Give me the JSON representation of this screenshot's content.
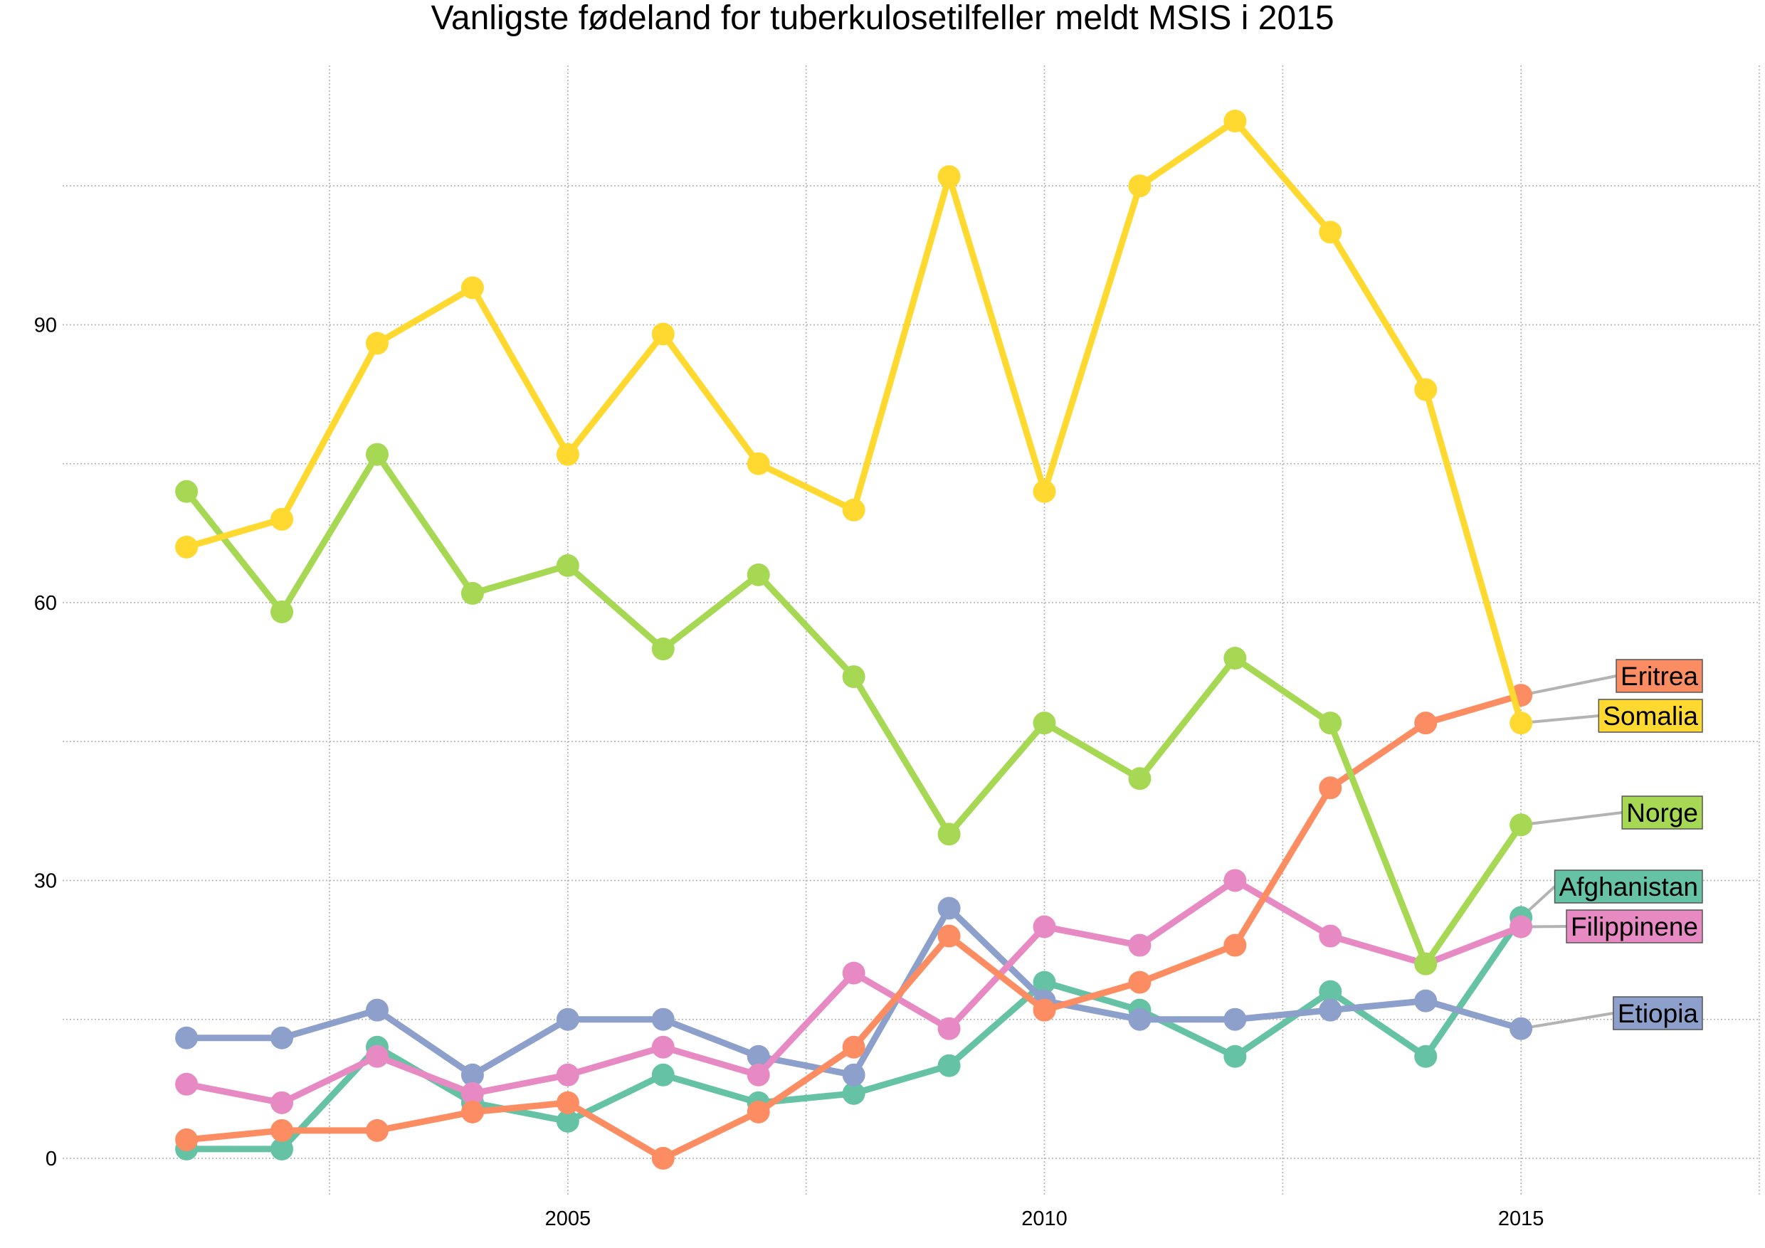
{
  "chart_data": {
    "type": "line",
    "title": "Vanligste fødeland for tuberkulosetilfeller meldt MSIS i 2015",
    "xlabel": "",
    "ylabel": "",
    "x": [
      2001,
      2002,
      2003,
      2004,
      2005,
      2006,
      2007,
      2008,
      2009,
      2010,
      2011,
      2012,
      2013,
      2014,
      2015
    ],
    "xlim": [
      1999.7,
      2017.5
    ],
    "ylim": [
      -4,
      118
    ],
    "x_ticks": [
      2005,
      2010,
      2015
    ],
    "y_ticks": [
      0,
      30,
      60,
      90
    ],
    "grid": true,
    "legend": "direct labels at right end of lines",
    "series": [
      {
        "name": "Afghanistan",
        "color": "#66c2a5",
        "values": [
          1,
          1,
          12,
          6,
          4,
          9,
          6,
          7,
          10,
          19,
          16,
          11,
          18,
          11,
          26
        ]
      },
      {
        "name": "Etiopia",
        "color": "#8da0cb",
        "values": [
          13,
          13,
          16,
          9,
          15,
          15,
          11,
          9,
          27,
          17,
          15,
          15,
          16,
          17,
          14
        ]
      },
      {
        "name": "Filippinene",
        "color": "#e78ac3",
        "values": [
          8,
          6,
          11,
          7,
          9,
          12,
          9,
          20,
          14,
          25,
          23,
          30,
          24,
          21,
          25
        ]
      },
      {
        "name": "Eritrea",
        "color": "#fc8d62",
        "values": [
          2,
          3,
          3,
          5,
          6,
          0,
          5,
          12,
          24,
          16,
          19,
          23,
          40,
          47,
          50
        ]
      },
      {
        "name": "Norge",
        "color": "#a6d854",
        "values": [
          72,
          59,
          76,
          61,
          64,
          55,
          63,
          52,
          35,
          47,
          41,
          54,
          47,
          21,
          36
        ]
      },
      {
        "name": "Somalia",
        "color": "#ffd92f",
        "values": [
          66,
          69,
          88,
          94,
          76,
          89,
          75,
          70,
          106,
          72,
          105,
          112,
          100,
          83,
          47
        ]
      }
    ]
  }
}
